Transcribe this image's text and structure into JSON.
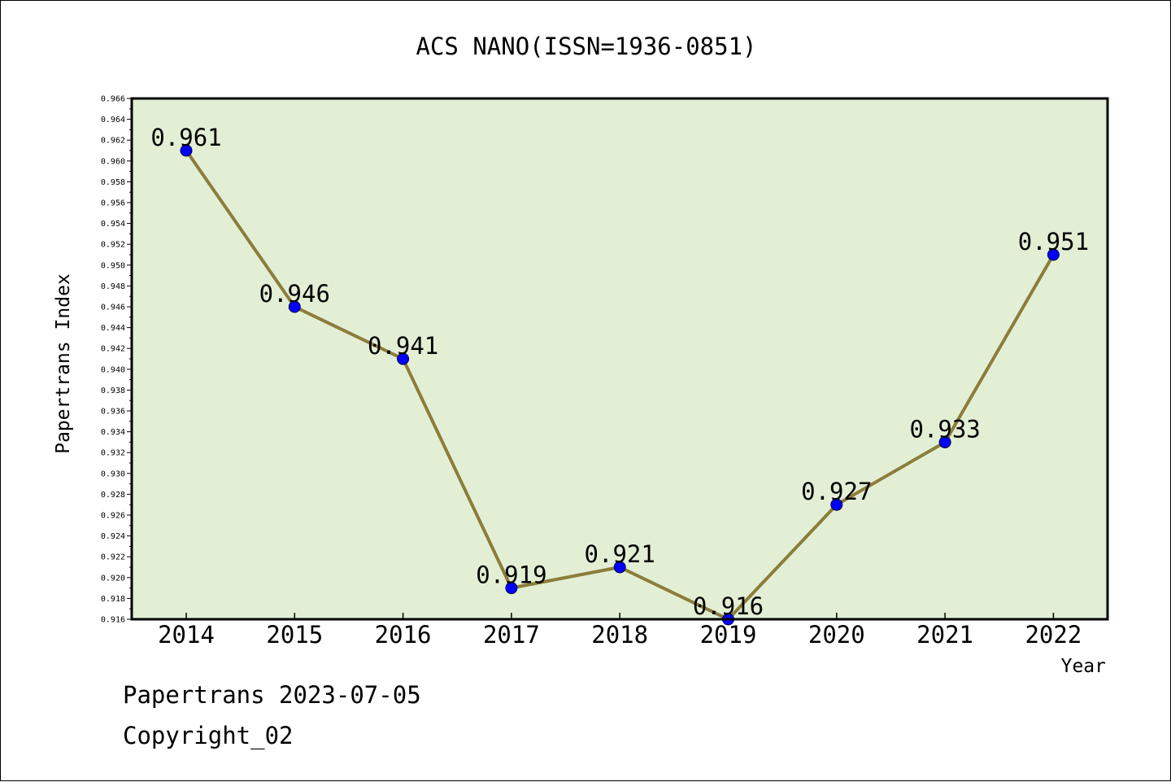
{
  "chart_data": {
    "type": "line",
    "title": "ACS NANO(ISSN=1936-0851)",
    "xlabel": "Year",
    "ylabel": "Papertrans Index",
    "categories": [
      "2014",
      "2015",
      "2016",
      "2017",
      "2018",
      "2019",
      "2020",
      "2021",
      "2022"
    ],
    "series": [
      {
        "values": [
          0.961,
          0.946,
          0.941,
          0.919,
          0.921,
          0.916,
          0.927,
          0.933,
          0.951
        ]
      }
    ],
    "data_labels": [
      "0.961",
      "0.946",
      "0.941",
      "0.919",
      "0.921",
      "0.916",
      "0.927",
      "0.933",
      "0.951"
    ],
    "ylim": [
      0.916,
      0.966
    ],
    "ytick_step": 0.002,
    "grid": false,
    "legend": "none",
    "colors": {
      "plot_background": "#e2efd5",
      "line": "#8b7d3a",
      "marker": "#0000ff"
    }
  },
  "footer": {
    "line1": "Papertrans 2023-07-05",
    "line2": "Copyright_02"
  }
}
